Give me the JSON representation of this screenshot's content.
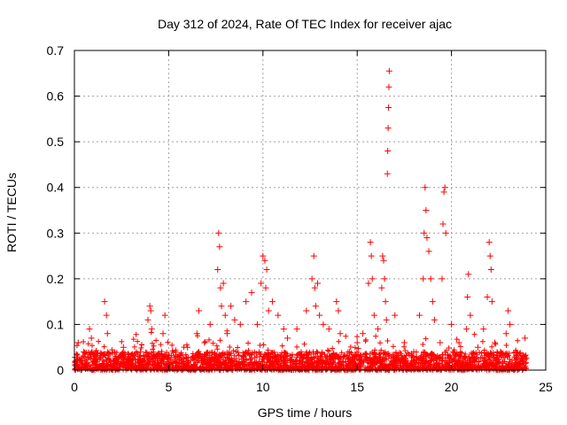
{
  "chart_data": {
    "type": "scatter",
    "title": "Day 312 of 2024, Rate Of TEC Index for receiver ajac",
    "xlabel": "GPS time / hours",
    "ylabel": "ROTI / TECUs",
    "xlim": [
      0,
      25
    ],
    "ylim": [
      0,
      0.7
    ],
    "xticks": [
      0,
      5,
      10,
      15,
      20,
      25
    ],
    "yticks": [
      0,
      0.1,
      0.2,
      0.3,
      0.4,
      0.5,
      0.6,
      0.7
    ],
    "xtick_labels": [
      "0",
      "5",
      "10",
      "15",
      "20",
      "25"
    ],
    "ytick_labels": [
      "0",
      "0.1",
      "0.2",
      "0.3",
      "0.4",
      "0.5",
      "0.6",
      "0.7"
    ],
    "grid": true,
    "marker": "+",
    "color": "#ff0000",
    "series": [
      {
        "name": "ROTI",
        "x": [
          0.1,
          0.2,
          0.5,
          0.8,
          0.9,
          1.0,
          1.6,
          1.7,
          1.75,
          2.2,
          2.6,
          3.0,
          3.5,
          3.9,
          4.0,
          4.05,
          4.1,
          4.4,
          4.7,
          4.8,
          5.5,
          6.0,
          6.5,
          6.6,
          6.9,
          7.2,
          7.6,
          7.65,
          7.7,
          7.75,
          7.8,
          7.9,
          8.0,
          8.1,
          8.3,
          8.5,
          8.8,
          9.1,
          9.4,
          9.7,
          9.9,
          10.0,
          10.1,
          10.15,
          10.2,
          10.3,
          10.5,
          10.8,
          11.1,
          11.3,
          11.8,
          12.3,
          12.6,
          12.7,
          12.75,
          12.8,
          12.9,
          13.0,
          13.2,
          13.5,
          13.9,
          14.0,
          14.1,
          14.6,
          15.0,
          15.3,
          15.6,
          15.7,
          15.75,
          15.8,
          15.9,
          16.1,
          16.3,
          16.35,
          16.4,
          16.45,
          16.5,
          16.55,
          16.6,
          16.62,
          16.64,
          16.66,
          16.68,
          16.7,
          17.0,
          17.5,
          18.0,
          18.3,
          18.5,
          18.55,
          18.6,
          18.65,
          18.7,
          18.8,
          18.9,
          19.0,
          19.1,
          19.4,
          19.5,
          19.55,
          19.6,
          19.65,
          19.7,
          20.0,
          20.4,
          20.8,
          20.85,
          20.9,
          21.0,
          21.4,
          21.7,
          21.9,
          22.0,
          22.05,
          22.1,
          22.15,
          22.3,
          22.6,
          22.9,
          23.0,
          23.1,
          23.4,
          23.8,
          23.9
        ],
        "y": [
          0.02,
          0.06,
          0.04,
          0.09,
          0.07,
          0.03,
          0.15,
          0.12,
          0.08,
          0.03,
          0.05,
          0.02,
          0.04,
          0.11,
          0.14,
          0.13,
          0.09,
          0.03,
          0.08,
          0.12,
          0.03,
          0.05,
          0.08,
          0.13,
          0.06,
          0.1,
          0.22,
          0.3,
          0.27,
          0.18,
          0.14,
          0.19,
          0.12,
          0.08,
          0.14,
          0.11,
          0.1,
          0.15,
          0.17,
          0.1,
          0.19,
          0.25,
          0.24,
          0.18,
          0.22,
          0.13,
          0.15,
          0.12,
          0.09,
          0.07,
          0.09,
          0.13,
          0.2,
          0.25,
          0.18,
          0.14,
          0.19,
          0.12,
          0.1,
          0.09,
          0.15,
          0.13,
          0.08,
          0.04,
          0.06,
          0.08,
          0.19,
          0.28,
          0.25,
          0.2,
          0.12,
          0.09,
          0.18,
          0.25,
          0.24,
          0.2,
          0.15,
          0.11,
          0.43,
          0.48,
          0.53,
          0.575,
          0.62,
          0.655,
          0.12,
          0.06,
          0.04,
          0.12,
          0.2,
          0.3,
          0.4,
          0.35,
          0.29,
          0.26,
          0.2,
          0.15,
          0.11,
          0.06,
          0.2,
          0.32,
          0.39,
          0.4,
          0.3,
          0.1,
          0.06,
          0.09,
          0.16,
          0.21,
          0.12,
          0.05,
          0.09,
          0.16,
          0.28,
          0.25,
          0.22,
          0.15,
          0.06,
          0.04,
          0.08,
          0.13,
          0.1,
          0.04,
          0.03,
          0.07
        ]
      }
    ],
    "dense_band": {
      "x_range": [
        0,
        24
      ],
      "y_baseline_max": 0.04
    }
  }
}
